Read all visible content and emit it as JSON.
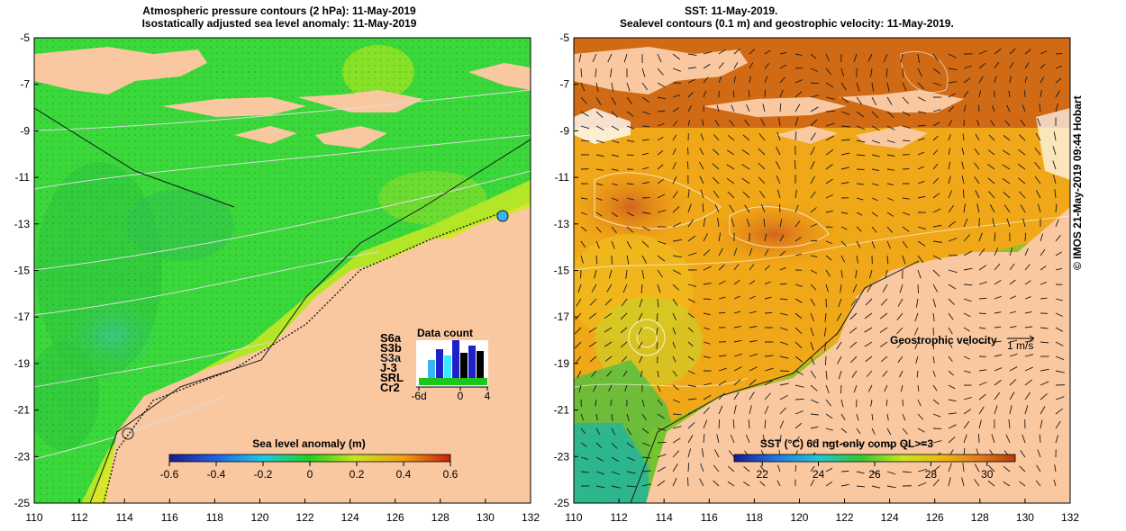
{
  "left_panel": {
    "title_line1": "Atmospheric pressure contours (2 hPa): 11-May-2019",
    "title_line2": "Isostatically adjusted sea level anomaly: 11-May-2019",
    "colorbar_label": "Sea level anomaly (m)",
    "colorbar_ticks": [
      "-0.6",
      "-0.4",
      "-0.2",
      "0",
      "0.2",
      "0.4",
      "0.6"
    ],
    "data_count": {
      "title": "Data count",
      "satellites": [
        {
          "name": "S6a",
          "color": "#3a2fc0"
        },
        {
          "name": "S3b",
          "color": "#5a3fd8"
        },
        {
          "name": "S3a",
          "color": "#f0f0ff"
        },
        {
          "name": "J-3",
          "color": "#000000"
        },
        {
          "name": "SRL",
          "color": "#3fe6ff"
        },
        {
          "name": "Cr2",
          "color": "#1ac81a"
        }
      ],
      "x_ticks": [
        "-6d",
        "0",
        "4"
      ]
    }
  },
  "right_panel": {
    "title_line1": "SST: 11-May-2019.",
    "title_line2": "Sealevel contours (0.1 m) and geostrophic velocity: 11-May-2019.",
    "colorbar_label": "SST (°C) 6d ngt-only comp QL>=3",
    "colorbar_ticks": [
      "22",
      "24",
      "26",
      "28",
      "30"
    ],
    "velocity_legend": "Geostrophic velocity",
    "velocity_unit": "1 m/s"
  },
  "axes": {
    "x_ticks": [
      "110",
      "112",
      "114",
      "116",
      "118",
      "120",
      "122",
      "124",
      "126",
      "128",
      "130",
      "132"
    ],
    "y_ticks": [
      "-5",
      "-7",
      "-9",
      "-11",
      "-13",
      "-15",
      "-17",
      "-19",
      "-21",
      "-23",
      "-25"
    ]
  },
  "credit": "© IMOS 21-May-2019 09:44 Hobart",
  "colors": {
    "land": "#fac8a0",
    "sla_ocean": "#3fd83f",
    "sst_warm": "#f0a010",
    "sst_hot": "#c85a10",
    "sst_cool": "#40c060"
  }
}
